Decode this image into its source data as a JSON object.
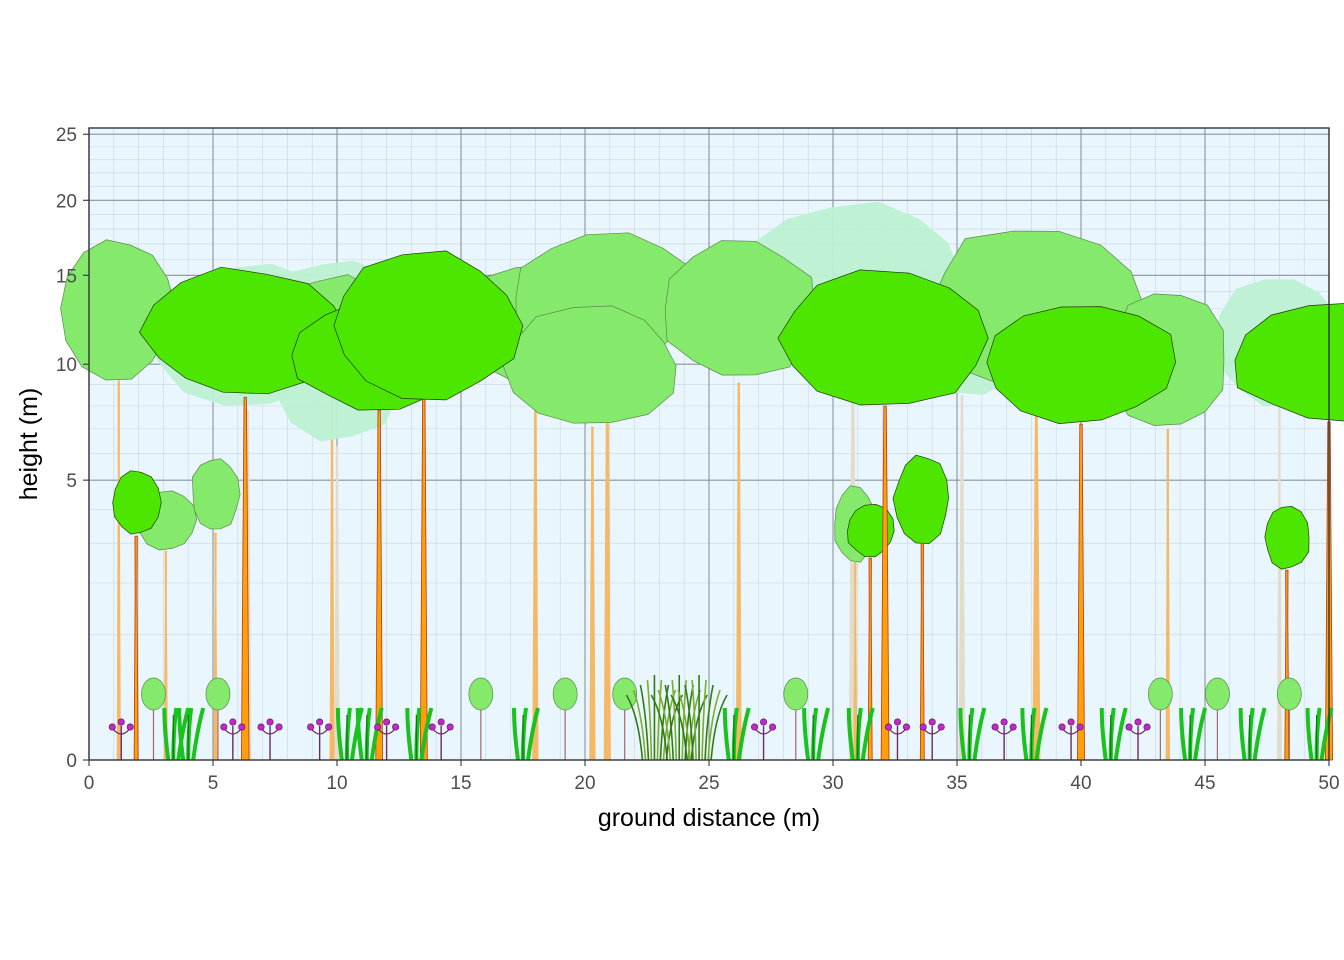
{
  "chart_data": {
    "type": "scatter",
    "xlabel": "ground distance (m)",
    "ylabel": "height (m)",
    "xlim": [
      0,
      50
    ],
    "ylim": [
      0,
      25.5
    ],
    "y_scale": "sqrt",
    "x_ticks": [
      0,
      5,
      10,
      15,
      20,
      25,
      30,
      35,
      40,
      45,
      50
    ],
    "y_ticks": [
      0,
      5,
      10,
      15,
      20,
      25
    ],
    "grid": true,
    "colors": {
      "panel_background": "#eaf6fe",
      "grid_major": "#8a949c",
      "grid_minor": "#c7d6e2",
      "canopy_dark": "#4de600",
      "canopy_mid": "#85e96b",
      "canopy_light": "#bdf0d2",
      "stem_orange": "#ff9f0a",
      "stem_light_orange": "#f5b865",
      "stem_grey": "#e2dccb",
      "herb_green": "#19c21c",
      "flower_magenta": "#c02ac7",
      "grass_olive": "#7cae2b"
    },
    "trees": [
      {
        "x": 1.2,
        "h": 17.5,
        "crown_base": 9.2,
        "crown_width": 4.6,
        "shade": "canopy_mid"
      },
      {
        "x": 6.4,
        "h": 15.8,
        "crown_base": 7.8,
        "crown_width": 8.5,
        "shade": "canopy_light"
      },
      {
        "x": 10.0,
        "h": 16.3,
        "crown_base": 6.3,
        "crown_width": 6.2,
        "shade": "canopy_light"
      },
      {
        "x": 9.8,
        "h": 15.0,
        "crown_base": 9.0,
        "crown_width": 5.5,
        "shade": "canopy_mid"
      },
      {
        "x": 18.0,
        "h": 15.6,
        "crown_base": 9.1,
        "crown_width": 7.0,
        "shade": "canopy_mid"
      },
      {
        "x": 20.9,
        "h": 18.0,
        "crown_base": 10.0,
        "crown_width": 8.0,
        "shade": "canopy_mid"
      },
      {
        "x": 26.2,
        "h": 17.5,
        "crown_base": 9.1,
        "crown_width": 6.5,
        "shade": "canopy_mid"
      },
      {
        "x": 30.8,
        "h": 20.0,
        "crown_base": 11.0,
        "crown_width": 9.0,
        "shade": "canopy_light"
      },
      {
        "x": 35.2,
        "h": 16.0,
        "crown_base": 8.5,
        "crown_width": 7.5,
        "shade": "canopy_light"
      },
      {
        "x": 38.2,
        "h": 18.5,
        "crown_base": 8.7,
        "crown_width": 9.0,
        "shade": "canopy_mid"
      },
      {
        "x": 43.5,
        "h": 14.0,
        "crown_base": 7.0,
        "crown_width": 5.0,
        "shade": "canopy_mid"
      },
      {
        "x": 48.0,
        "h": 15.0,
        "crown_base": 8.0,
        "crown_width": 5.5,
        "shade": "canopy_light"
      },
      {
        "x": 6.3,
        "h": 15.5,
        "crown_base": 8.4,
        "crown_width": 8.5,
        "shade": "canopy_dark"
      },
      {
        "x": 11.7,
        "h": 13.5,
        "crown_base": 7.8,
        "crown_width": 7.5,
        "shade": "canopy_dark"
      },
      {
        "x": 13.5,
        "h": 16.5,
        "crown_base": 8.3,
        "crown_width": 7.8,
        "shade": "canopy_dark"
      },
      {
        "x": 20.3,
        "h": 13.2,
        "crown_base": 7.1,
        "crown_width": 7.0,
        "shade": "canopy_mid"
      },
      {
        "x": 32.1,
        "h": 15.3,
        "crown_base": 8.0,
        "crown_width": 8.8,
        "shade": "canopy_dark"
      },
      {
        "x": 40.0,
        "h": 13.5,
        "crown_base": 7.2,
        "crown_width": 7.8,
        "shade": "canopy_dark"
      },
      {
        "x": 50.0,
        "h": 13.6,
        "crown_base": 7.3,
        "crown_width": 8.0,
        "shade": "canopy_dark"
      },
      {
        "x": 1.9,
        "h": 5.4,
        "crown_base": 3.2,
        "crown_width": 2.0,
        "shade": "canopy_dark"
      },
      {
        "x": 3.1,
        "h": 4.7,
        "crown_base": 2.8,
        "crown_width": 2.4,
        "shade": "canopy_mid"
      },
      {
        "x": 5.1,
        "h": 5.9,
        "crown_base": 3.3,
        "crown_width": 2.0,
        "shade": "canopy_mid"
      },
      {
        "x": 30.9,
        "h": 4.8,
        "crown_base": 2.5,
        "crown_width": 1.8,
        "shade": "canopy_mid"
      },
      {
        "x": 31.5,
        "h": 4.2,
        "crown_base": 2.6,
        "crown_width": 2.0,
        "shade": "canopy_dark"
      },
      {
        "x": 33.6,
        "h": 6.0,
        "crown_base": 3.0,
        "crown_width": 2.3,
        "shade": "canopy_dark"
      },
      {
        "x": 48.3,
        "h": 4.2,
        "crown_base": 2.3,
        "crown_width": 1.9,
        "shade": "canopy_dark"
      }
    ],
    "ground_plants": [
      {
        "x": 1.3,
        "kind": "flower"
      },
      {
        "x": 2.6,
        "kind": "shrub"
      },
      {
        "x": 3.4,
        "kind": "herb"
      },
      {
        "x": 4.0,
        "kind": "herb"
      },
      {
        "x": 5.2,
        "kind": "shrub"
      },
      {
        "x": 5.8,
        "kind": "flower"
      },
      {
        "x": 7.3,
        "kind": "flower"
      },
      {
        "x": 9.3,
        "kind": "flower"
      },
      {
        "x": 10.4,
        "kind": "herb"
      },
      {
        "x": 11.2,
        "kind": "herb"
      },
      {
        "x": 12.0,
        "kind": "flower"
      },
      {
        "x": 13.2,
        "kind": "herb"
      },
      {
        "x": 14.2,
        "kind": "flower"
      },
      {
        "x": 15.8,
        "kind": "shrub"
      },
      {
        "x": 17.5,
        "kind": "herb"
      },
      {
        "x": 19.2,
        "kind": "shrub"
      },
      {
        "x": 21.6,
        "kind": "shrub"
      },
      {
        "x": 22.8,
        "kind": "grass"
      },
      {
        "x": 23.8,
        "kind": "grass"
      },
      {
        "x": 24.6,
        "kind": "grass"
      },
      {
        "x": 26.0,
        "kind": "herb"
      },
      {
        "x": 27.2,
        "kind": "flower"
      },
      {
        "x": 28.5,
        "kind": "shrub"
      },
      {
        "x": 29.2,
        "kind": "herb"
      },
      {
        "x": 31.0,
        "kind": "herb"
      },
      {
        "x": 32.6,
        "kind": "flower"
      },
      {
        "x": 34.0,
        "kind": "flower"
      },
      {
        "x": 35.5,
        "kind": "herb"
      },
      {
        "x": 36.9,
        "kind": "flower"
      },
      {
        "x": 38.0,
        "kind": "herb"
      },
      {
        "x": 39.6,
        "kind": "flower"
      },
      {
        "x": 41.2,
        "kind": "herb"
      },
      {
        "x": 42.3,
        "kind": "flower"
      },
      {
        "x": 43.2,
        "kind": "shrub"
      },
      {
        "x": 44.4,
        "kind": "herb"
      },
      {
        "x": 45.5,
        "kind": "shrub"
      },
      {
        "x": 46.8,
        "kind": "herb"
      },
      {
        "x": 48.4,
        "kind": "shrub"
      },
      {
        "x": 49.5,
        "kind": "herb"
      }
    ]
  }
}
